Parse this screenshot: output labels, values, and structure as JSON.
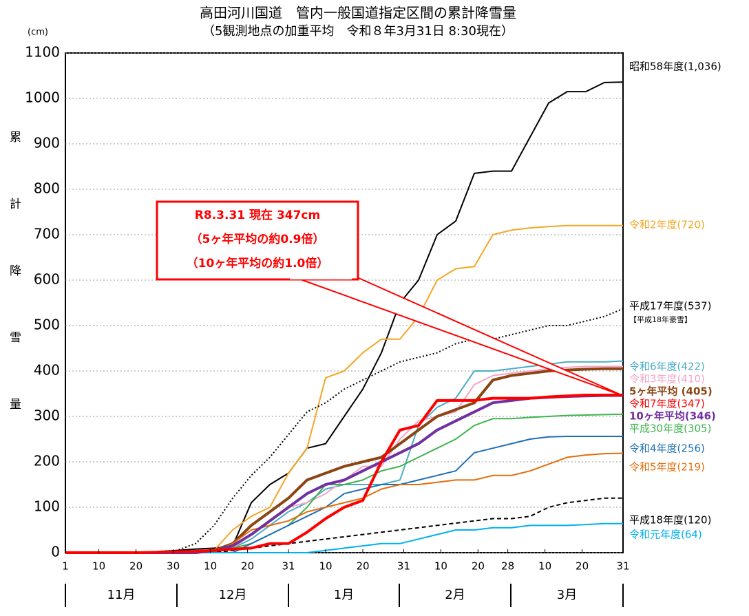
{
  "chart_data": {
    "type": "line",
    "title": "高田河川国道　管内一般国道指定区間の累計降雪量",
    "subtitle": "（5観測地点の加重平均　令和８年3月31日 8:30現在）",
    "ylabel": "累計降雪量",
    "yunit": "(cm)",
    "ylim": [
      0,
      1100
    ],
    "yticks": [
      0,
      100,
      200,
      300,
      400,
      500,
      600,
      700,
      800,
      900,
      1000,
      1100
    ],
    "xlim": [
      0,
      150
    ],
    "xticks": [
      {
        "value": 0,
        "label": "1"
      },
      {
        "value": 9,
        "label": "10"
      },
      {
        "value": 19,
        "label": "20"
      },
      {
        "value": 29,
        "label": "30"
      },
      {
        "value": 39,
        "label": "10"
      },
      {
        "value": 49,
        "label": "20"
      },
      {
        "value": 60,
        "label": "31"
      },
      {
        "value": 70,
        "label": "10"
      },
      {
        "value": 80,
        "label": "20"
      },
      {
        "value": 91,
        "label": "31"
      },
      {
        "value": 101,
        "label": "10"
      },
      {
        "value": 111,
        "label": "20"
      },
      {
        "value": 119,
        "label": "28"
      },
      {
        "value": 129,
        "label": "10"
      },
      {
        "value": 139,
        "label": "20"
      },
      {
        "value": 150,
        "label": "31"
      }
    ],
    "months": [
      "11月",
      "12月",
      "1月",
      "2月",
      "3月"
    ],
    "grid": true,
    "x": [
      0,
      10,
      20,
      30,
      35,
      40,
      45,
      50,
      55,
      60,
      65,
      70,
      75,
      80,
      85,
      90,
      95,
      100,
      105,
      110,
      115,
      120,
      125,
      130,
      135,
      140,
      145,
      150
    ],
    "series": [
      {
        "name": "昭和58年度(1,036)",
        "color": "#000000",
        "width": 2,
        "values": [
          0,
          0,
          0,
          5,
          8,
          10,
          15,
          110,
          150,
          175,
          230,
          240,
          300,
          360,
          440,
          550,
          600,
          700,
          730,
          835,
          840,
          840,
          915,
          990,
          1015,
          1015,
          1035,
          1036
        ]
      },
      {
        "name": "令和2年度(720)",
        "color": "#f5a623",
        "width": 2,
        "values": [
          0,
          0,
          0,
          0,
          0,
          5,
          50,
          80,
          100,
          175,
          230,
          385,
          400,
          440,
          470,
          470,
          520,
          600,
          625,
          630,
          700,
          710,
          715,
          718,
          720,
          720,
          720,
          720
        ]
      },
      {
        "name": "平成17年度(537)",
        "note": "【平成18年豪雪】",
        "color": "#000000",
        "width": 2,
        "dash": "2 3",
        "values": [
          0,
          0,
          0,
          5,
          20,
          60,
          120,
          170,
          210,
          260,
          310,
          330,
          360,
          380,
          400,
          420,
          430,
          440,
          460,
          470,
          470,
          480,
          490,
          500,
          500,
          510,
          520,
          537
        ]
      },
      {
        "name": "令和6年度(422)",
        "color": "#4bacc6",
        "width": 2,
        "values": [
          0,
          0,
          0,
          0,
          0,
          5,
          10,
          30,
          60,
          90,
          110,
          140,
          150,
          150,
          150,
          160,
          280,
          320,
          340,
          400,
          400,
          405,
          410,
          415,
          420,
          420,
          420,
          422
        ]
      },
      {
        "name": "令和3年度(410)",
        "color": "#f4a6c8",
        "width": 2,
        "values": [
          0,
          0,
          0,
          0,
          0,
          0,
          10,
          40,
          70,
          100,
          110,
          130,
          160,
          190,
          190,
          250,
          290,
          300,
          310,
          370,
          390,
          395,
          400,
          405,
          408,
          410,
          410,
          410
        ]
      },
      {
        "name": "5ヶ年平均 (405)",
        "color": "#8b4513",
        "width": 4,
        "bold": true,
        "values": [
          0,
          0,
          0,
          0,
          0,
          5,
          20,
          60,
          90,
          120,
          160,
          175,
          190,
          200,
          210,
          240,
          270,
          300,
          315,
          330,
          380,
          390,
          395,
          400,
          402,
          404,
          405,
          405
        ]
      },
      {
        "name": "平成30年度(305)",
        "color": "#3cb44b",
        "width": 2,
        "values": [
          0,
          0,
          0,
          0,
          0,
          0,
          10,
          20,
          40,
          60,
          100,
          150,
          150,
          160,
          180,
          190,
          210,
          230,
          250,
          280,
          295,
          295,
          298,
          300,
          302,
          303,
          304,
          305
        ]
      },
      {
        "name": "令和4年度(256)",
        "color": "#1f6fb5",
        "width": 2,
        "values": [
          0,
          0,
          0,
          0,
          0,
          0,
          0,
          20,
          40,
          60,
          80,
          100,
          130,
          140,
          150,
          150,
          160,
          170,
          180,
          220,
          230,
          240,
          250,
          255,
          256,
          256,
          256,
          256
        ]
      },
      {
        "name": "令和5年度(219)",
        "color": "#e46c0a",
        "width": 2,
        "values": [
          0,
          0,
          0,
          0,
          0,
          0,
          20,
          50,
          60,
          70,
          90,
          100,
          110,
          120,
          140,
          150,
          150,
          155,
          160,
          160,
          170,
          170,
          180,
          195,
          210,
          215,
          218,
          219
        ]
      },
      {
        "name": "平成18年度(120)",
        "color": "#000000",
        "width": 2,
        "dash": "6 4",
        "values": [
          0,
          0,
          0,
          0,
          0,
          0,
          5,
          10,
          15,
          20,
          25,
          30,
          35,
          40,
          45,
          50,
          55,
          60,
          65,
          70,
          75,
          75,
          80,
          100,
          110,
          115,
          120,
          120
        ]
      },
      {
        "name": "令和元年度(64)",
        "color": "#00b0f0",
        "width": 2,
        "values": [
          0,
          0,
          0,
          0,
          0,
          0,
          0,
          0,
          0,
          0,
          0,
          5,
          10,
          15,
          20,
          20,
          30,
          40,
          50,
          50,
          55,
          55,
          60,
          60,
          60,
          62,
          64,
          64
        ]
      },
      {
        "name": "10ヶ年平均(346)",
        "color": "#7030a0",
        "width": 4,
        "bold": true,
        "values": [
          0,
          0,
          0,
          0,
          0,
          5,
          15,
          40,
          70,
          100,
          130,
          150,
          160,
          180,
          200,
          220,
          240,
          270,
          290,
          310,
          330,
          335,
          340,
          342,
          344,
          345,
          346,
          346
        ]
      },
      {
        "name": "令和7年度(347)",
        "color": "#ff0000",
        "width": 4,
        "values": [
          0,
          0,
          0,
          2,
          3,
          5,
          8,
          10,
          20,
          20,
          45,
          75,
          100,
          115,
          200,
          270,
          280,
          335,
          335,
          335,
          340,
          340,
          340,
          343,
          345,
          347,
          347,
          347
        ]
      }
    ],
    "callout": [
      "R8.3.31 現在 347cm",
      "（5ヶ年平均の約0.9倍）",
      "（10ヶ年平均の約1.0倍）"
    ]
  }
}
